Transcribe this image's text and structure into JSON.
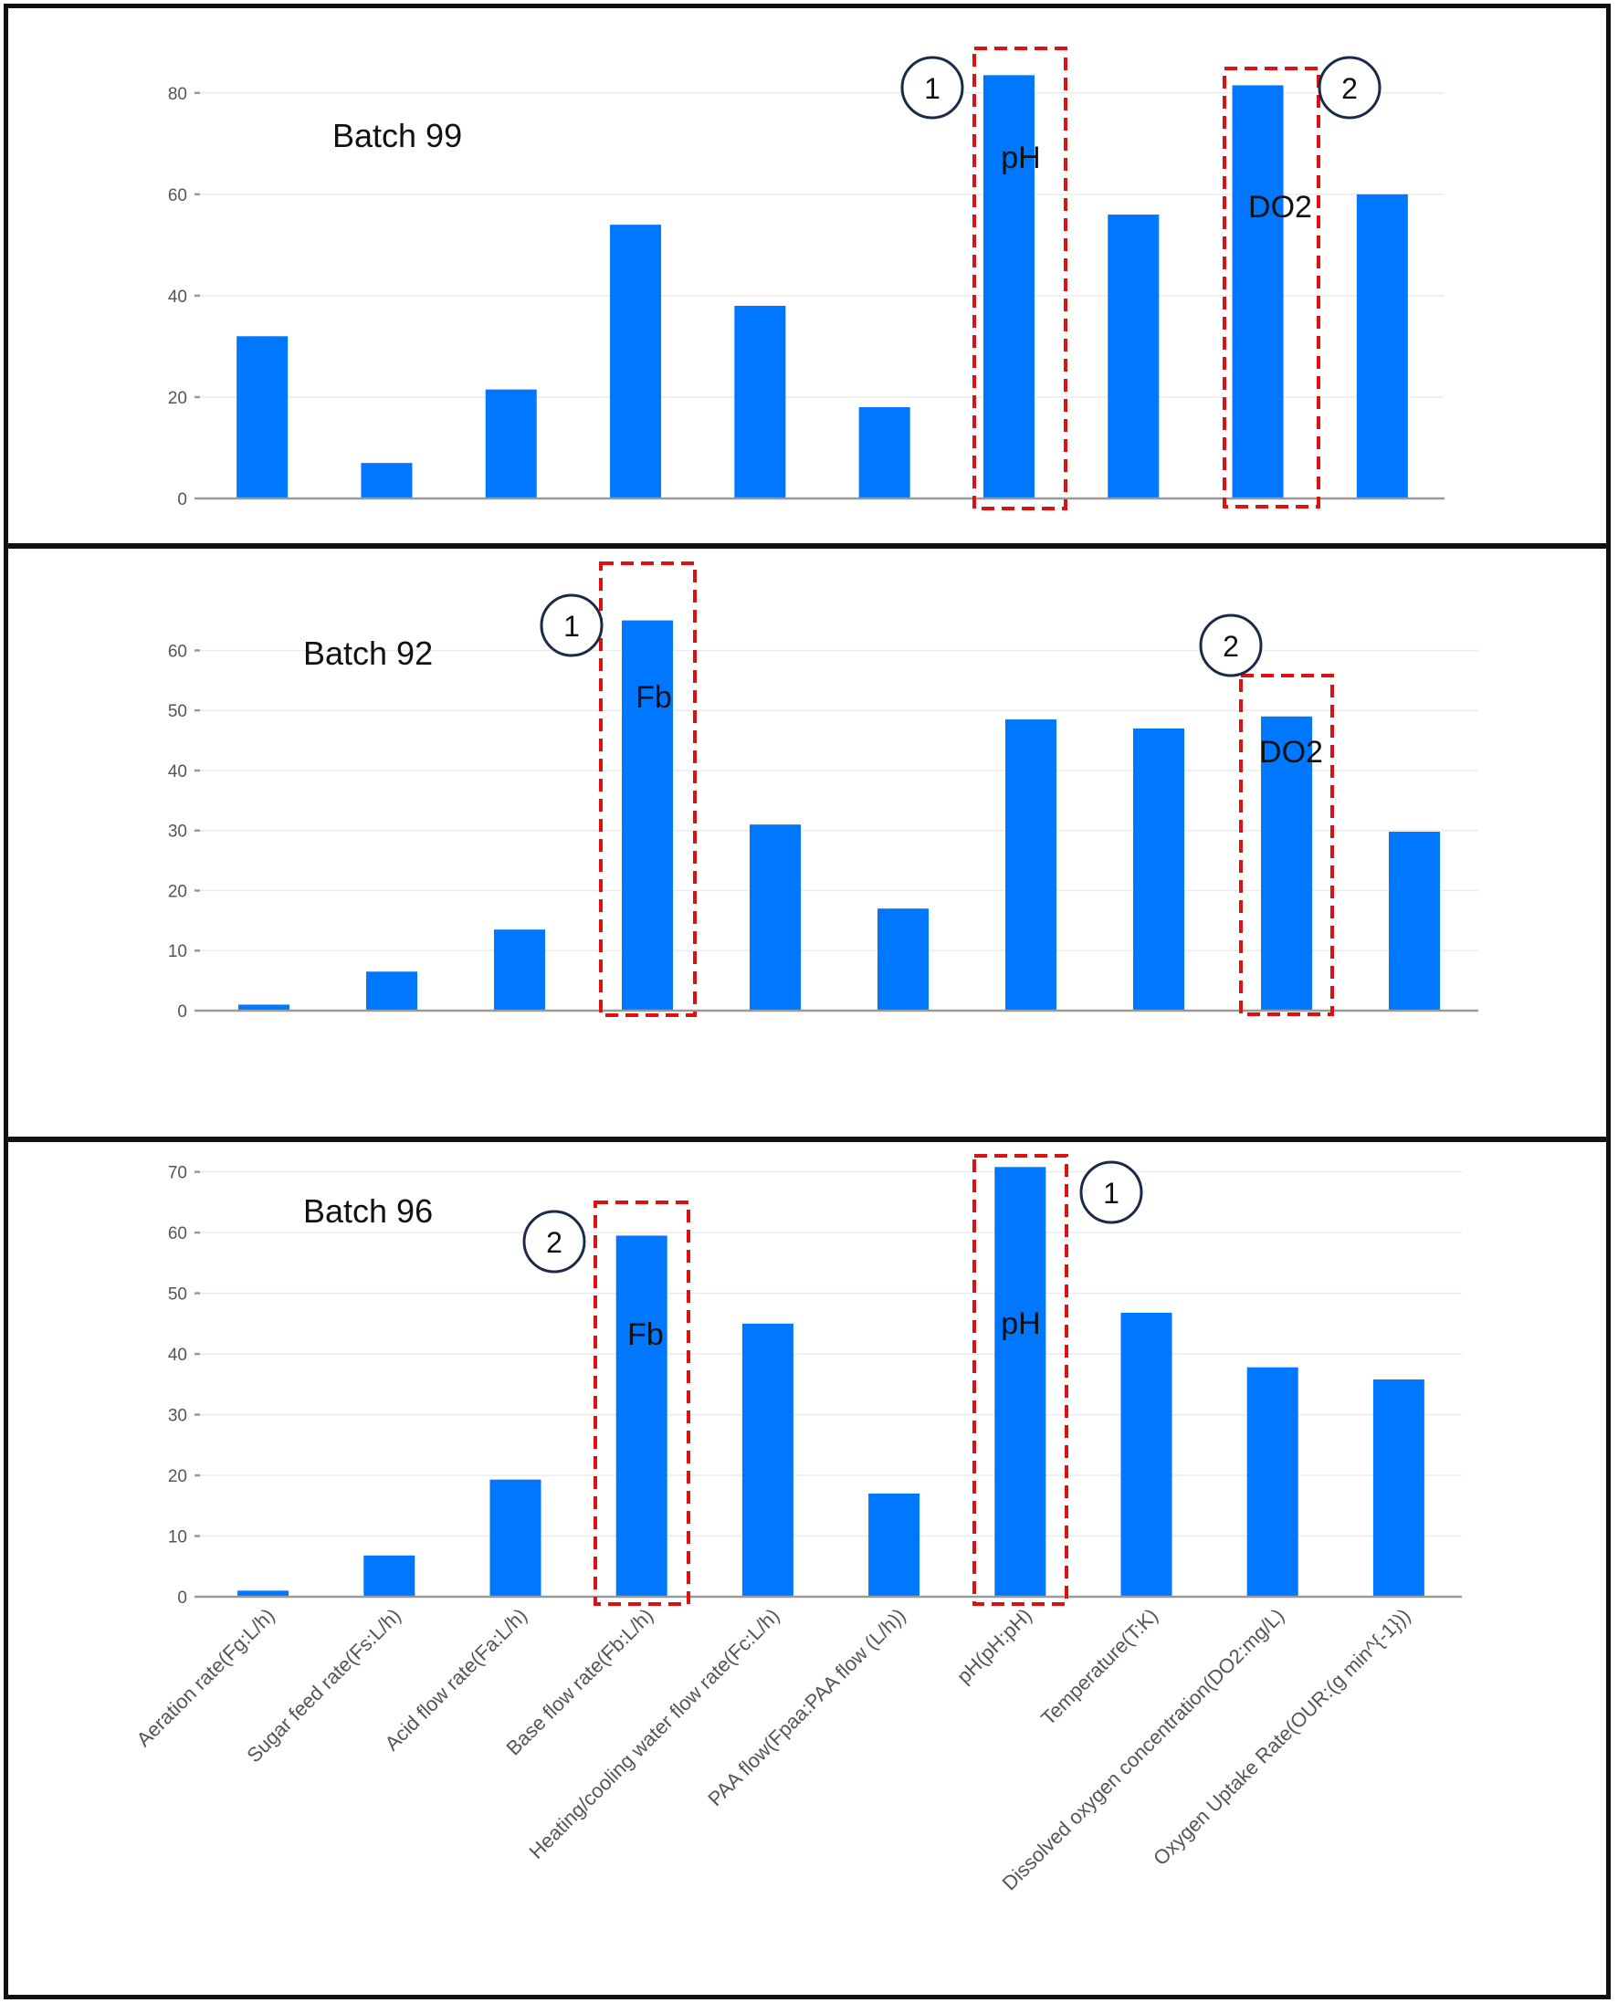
{
  "colors": {
    "bar": "#0077ff",
    "highlight": "#e01010",
    "panel_border": "#111111",
    "axis": "#999999",
    "grid": "#ebebeb"
  },
  "chart_data": [
    {
      "type": "bar",
      "label": "Batch 99",
      "ylim": [
        0,
        85
      ],
      "yticks": [
        0,
        20,
        40,
        60,
        80
      ],
      "values": [
        32,
        7,
        21.5,
        54,
        38,
        18,
        83.5,
        56,
        81.5,
        60
      ],
      "grid": true,
      "highlights": [
        {
          "index": 6,
          "text": "pH",
          "rank": "1"
        },
        {
          "index": 8,
          "text": "DO2",
          "rank": "2"
        }
      ]
    },
    {
      "type": "bar",
      "label": "Batch 92",
      "ylim": [
        0,
        66
      ],
      "yticks": [
        0,
        10,
        20,
        30,
        40,
        50,
        60
      ],
      "values": [
        1,
        6.5,
        13.5,
        65,
        31,
        17,
        48.5,
        47,
        49,
        29.8
      ],
      "grid": true,
      "highlights": [
        {
          "index": 3,
          "text": "Fb",
          "rank": "1"
        },
        {
          "index": 8,
          "text": "DO2",
          "rank": "2"
        }
      ]
    },
    {
      "type": "bar",
      "label": "Batch 96",
      "ylim": [
        0,
        71
      ],
      "yticks": [
        0,
        10,
        20,
        30,
        40,
        50,
        60,
        70
      ],
      "values": [
        1,
        6.8,
        19.3,
        59.5,
        45,
        17,
        70.8,
        46.8,
        37.8,
        35.8
      ],
      "grid": true,
      "highlights": [
        {
          "index": 6,
          "text": "pH",
          "rank": "1"
        },
        {
          "index": 3,
          "text": "Fb",
          "rank": "2"
        }
      ],
      "categories": [
        "Aeration rate(Fg:L/h)",
        "Sugar feed rate(Fs:L/h)",
        "Acid flow rate(Fa:L/h)",
        "Base flow rate(Fb:L/h)",
        "Heating/cooling water flow rate(Fc:L/h)",
        "PAA flow(Fpaa:PAA flow (L/h))",
        "pH(pH:pH)",
        "Temperature(T:K)",
        "Dissolved oxygen concentration(DO2:mg/L)",
        "Oxygen Uptake Rate(OUR:(g min^{-1}))"
      ]
    }
  ]
}
